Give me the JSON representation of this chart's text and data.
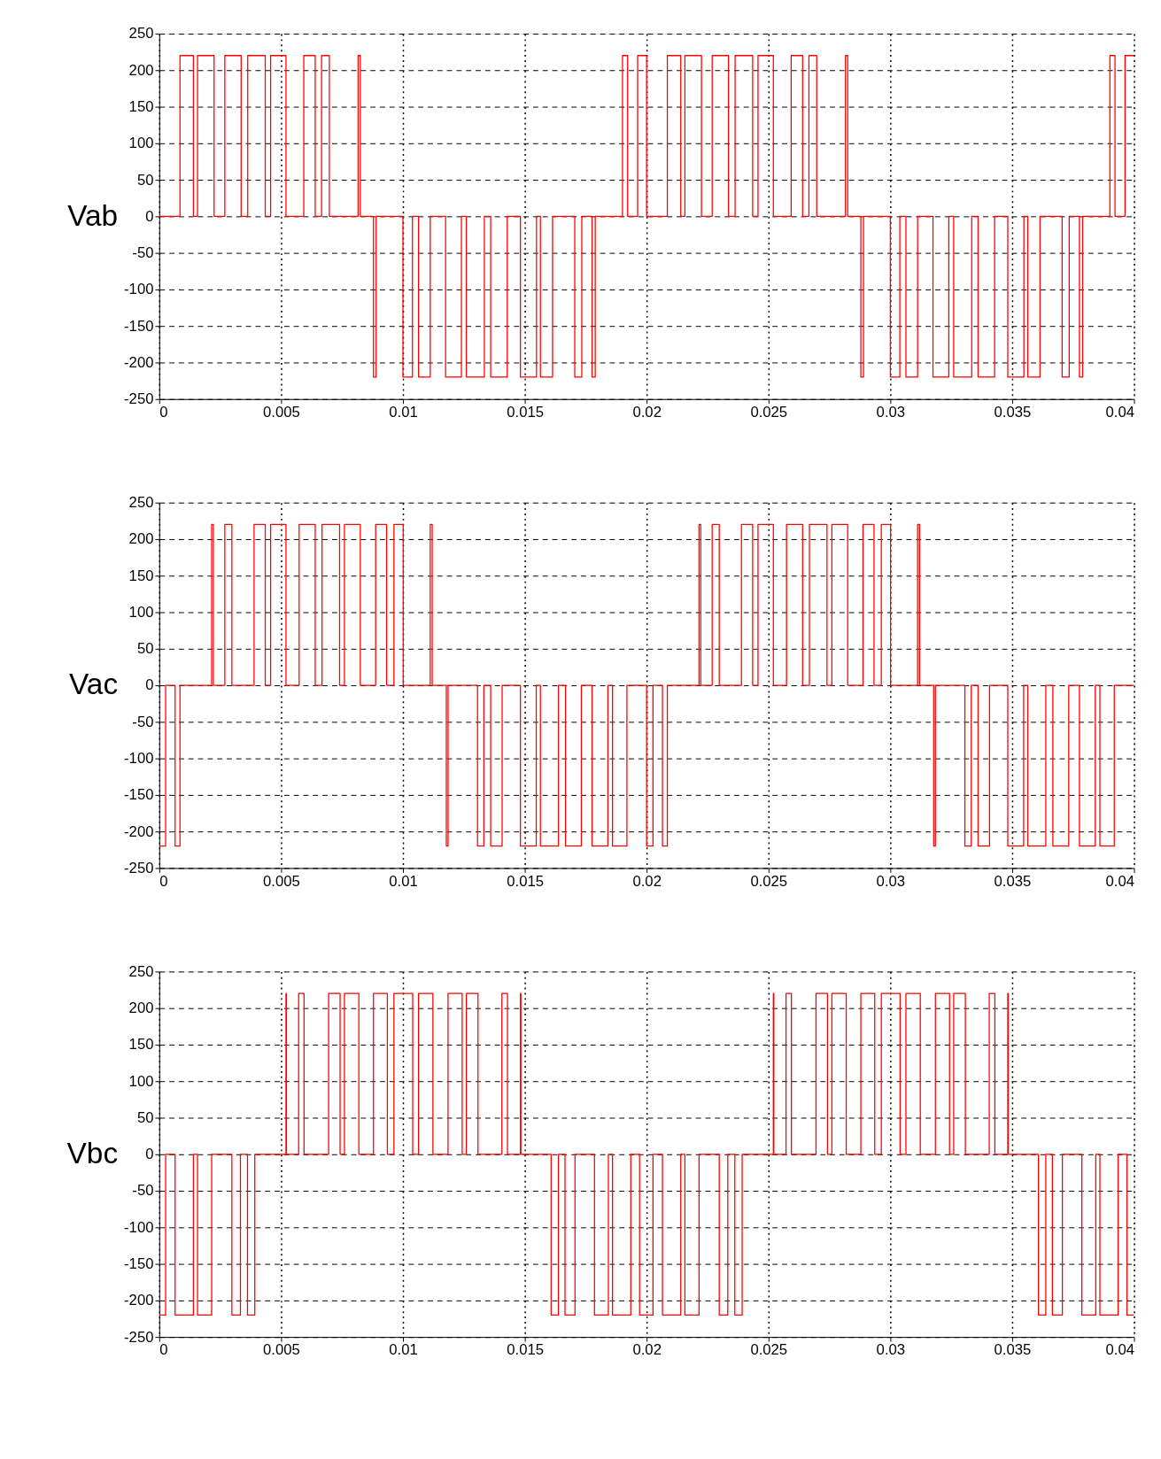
{
  "chart_data": [
    {
      "type": "step",
      "ylabel": "Vab",
      "grid": true,
      "xlim": [
        0,
        0.04
      ],
      "ylim": [
        -250,
        250
      ],
      "xticks": [
        0,
        0.005,
        0.01,
        0.015,
        0.02,
        0.025,
        0.03,
        0.035,
        0.04
      ],
      "yticks": [
        -250,
        -200,
        -150,
        -100,
        -50,
        0,
        50,
        100,
        150,
        200,
        250
      ],
      "x": [
        0,
        0.00085,
        0.0014,
        0.00157,
        0.00225,
        0.00269,
        0.00336,
        0.00363,
        0.00435,
        0.00457,
        0.0052,
        0.00593,
        0.0064,
        0.00666,
        0.00698,
        0.00816,
        0.00825,
        0.00879,
        0.0089,
        0.01,
        0.01039,
        0.01064,
        0.01112,
        0.01175,
        0.0124,
        0.0126,
        0.01334,
        0.0136,
        0.01428,
        0.01482,
        0.01548,
        0.01564,
        0.01614,
        0.01705,
        0.01734,
        0.01776,
        0.01789,
        0.01901,
        0.01922,
        0.01963,
        0.02,
        0.02085,
        0.0214,
        0.02157,
        0.02225,
        0.02269,
        0.02336,
        0.02363,
        0.02435,
        0.02457,
        0.0252,
        0.02593,
        0.0264,
        0.02666,
        0.02698,
        0.02816,
        0.02825,
        0.02879,
        0.0289,
        0.03,
        0.03039,
        0.03064,
        0.03112,
        0.03175,
        0.0324,
        0.0326,
        0.03334,
        0.0336,
        0.03428,
        0.03482,
        0.03548,
        0.03564,
        0.03614,
        0.03705,
        0.03734,
        0.03776,
        0.03789,
        0.03901,
        0.03922,
        0.03963,
        0.04
      ],
      "series": [
        {
          "color": "#ff0000",
          "values": [
            0,
            220,
            0,
            220,
            0,
            220,
            0,
            220,
            0,
            220,
            0,
            220,
            0,
            220,
            0,
            220,
            0,
            -220,
            0,
            -220,
            0,
            -220,
            0,
            -220,
            0,
            -220,
            0,
            -220,
            0,
            -220,
            0,
            -220,
            0,
            -220,
            0,
            -220,
            0,
            220,
            0,
            220,
            0,
            220,
            0,
            220,
            0,
            220,
            0,
            220,
            0,
            220,
            0,
            220,
            0,
            220,
            0,
            220,
            0,
            -220,
            0,
            -220,
            0,
            -220,
            0,
            -220,
            0,
            -220,
            0,
            -220,
            0,
            -220,
            0,
            -220,
            0,
            -220,
            0,
            -220,
            0,
            220,
            0,
            220,
            220
          ]
        }
      ]
    },
    {
      "type": "step",
      "ylabel": "Vac",
      "grid": true,
      "xlim": [
        0,
        0.04
      ],
      "ylim": [
        -250,
        250
      ],
      "xticks": [
        0,
        0.005,
        0.01,
        0.015,
        0.02,
        0.025,
        0.03,
        0.035,
        0.04
      ],
      "yticks": [
        -250,
        -200,
        -150,
        -100,
        -50,
        0,
        50,
        100,
        150,
        200,
        250
      ],
      "x": [
        0,
        0.00026,
        0.00065,
        0.00085,
        0.00215,
        0.00222,
        0.00269,
        0.00298,
        0.00389,
        0.00435,
        0.00457,
        0.0052,
        0.00574,
        0.0064,
        0.00668,
        0.0074,
        0.0076,
        0.00825,
        0.00888,
        0.00933,
        0.00963,
        0.01001,
        0.01112,
        0.0112,
        0.01178,
        0.01185,
        0.01306,
        0.01332,
        0.0136,
        0.01407,
        0.01482,
        0.01547,
        0.01564,
        0.01638,
        0.01667,
        0.01732,
        0.01776,
        0.01841,
        0.0186,
        0.01919,
        0.02,
        0.02026,
        0.02065,
        0.02085,
        0.02215,
        0.02222,
        0.02269,
        0.02298,
        0.02389,
        0.02435,
        0.02457,
        0.0252,
        0.02574,
        0.0264,
        0.02668,
        0.0274,
        0.0276,
        0.02825,
        0.02888,
        0.02933,
        0.02963,
        0.03001,
        0.03112,
        0.0312,
        0.03178,
        0.03185,
        0.03306,
        0.03332,
        0.0336,
        0.03407,
        0.03482,
        0.03547,
        0.03564,
        0.03638,
        0.03667,
        0.03732,
        0.03776,
        0.03841,
        0.0386,
        0.03919,
        0.04
      ],
      "series": [
        {
          "color": "#ff0000",
          "values": [
            -220,
            0,
            -220,
            0,
            220,
            0,
            220,
            0,
            220,
            0,
            220,
            0,
            220,
            0,
            220,
            0,
            220,
            0,
            220,
            0,
            220,
            0,
            220,
            0,
            -220,
            0,
            -220,
            0,
            -220,
            0,
            -220,
            0,
            -220,
            0,
            -220,
            0,
            -220,
            0,
            -220,
            0,
            -220,
            0,
            -220,
            0,
            220,
            0,
            220,
            0,
            220,
            0,
            220,
            0,
            220,
            0,
            220,
            0,
            220,
            0,
            220,
            0,
            220,
            0,
            220,
            0,
            -220,
            0,
            -220,
            0,
            -220,
            0,
            -220,
            0,
            -220,
            0,
            -220,
            0,
            -220,
            0,
            -220,
            0,
            0
          ]
        }
      ]
    },
    {
      "type": "step",
      "ylabel": "Vbc",
      "grid": true,
      "xlim": [
        0,
        0.04
      ],
      "ylim": [
        -250,
        250
      ],
      "xticks": [
        0,
        0.005,
        0.01,
        0.015,
        0.02,
        0.025,
        0.03,
        0.035,
        0.04
      ],
      "yticks": [
        -250,
        -200,
        -150,
        -100,
        -50,
        0,
        50,
        100,
        150,
        200,
        250
      ],
      "x": [
        0,
        0.00026,
        0.00065,
        0.0014,
        0.00157,
        0.00215,
        0.00298,
        0.00333,
        0.00362,
        0.00392,
        0.0052,
        0.00522,
        0.00572,
        0.00594,
        0.00695,
        0.00742,
        0.0076,
        0.00819,
        0.00879,
        0.00936,
        0.00963,
        0.0104,
        0.01064,
        0.01123,
        0.01185,
        0.01243,
        0.0126,
        0.01308,
        0.01406,
        0.01429,
        0.01482,
        0.01484,
        0.01608,
        0.01638,
        0.01665,
        0.01706,
        0.01786,
        0.01843,
        0.0186,
        0.01935,
        0.01971,
        0.02026,
        0.02065,
        0.0214,
        0.02157,
        0.02215,
        0.02298,
        0.02333,
        0.02362,
        0.02392,
        0.0252,
        0.02522,
        0.02572,
        0.02594,
        0.02695,
        0.02742,
        0.0276,
        0.02819,
        0.02879,
        0.02936,
        0.02963,
        0.0304,
        0.03064,
        0.03123,
        0.03185,
        0.03243,
        0.0326,
        0.03308,
        0.03406,
        0.03429,
        0.03482,
        0.03484,
        0.03608,
        0.03638,
        0.03665,
        0.03706,
        0.03786,
        0.03843,
        0.0386,
        0.03935,
        0.03971,
        0.04
      ],
      "series": [
        {
          "color": "#ff0000",
          "values": [
            -220,
            0,
            -220,
            0,
            -220,
            0,
            -220,
            0,
            -220,
            0,
            220,
            0,
            220,
            0,
            220,
            0,
            220,
            0,
            220,
            0,
            220,
            0,
            220,
            0,
            220,
            0,
            220,
            0,
            220,
            0,
            220,
            0,
            -220,
            0,
            -220,
            0,
            -220,
            0,
            -220,
            0,
            -220,
            0,
            -220,
            0,
            -220,
            0,
            -220,
            0,
            -220,
            0,
            220,
            0,
            220,
            0,
            220,
            0,
            220,
            0,
            220,
            0,
            220,
            0,
            220,
            0,
            220,
            0,
            220,
            0,
            220,
            0,
            220,
            0,
            -220,
            0,
            -220,
            0,
            -220,
            0,
            -220,
            0,
            -220,
            -220
          ]
        }
      ]
    }
  ]
}
